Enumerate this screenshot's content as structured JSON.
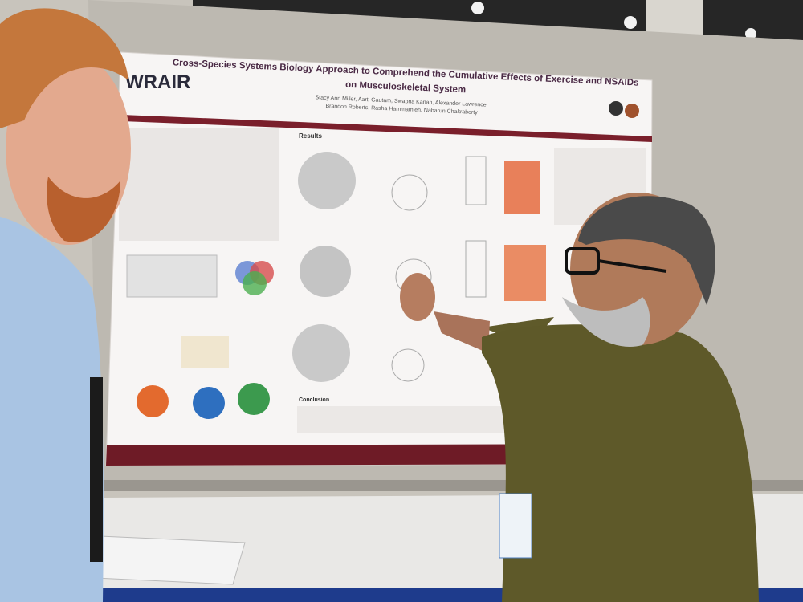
{
  "poster": {
    "logo": "WRAIR",
    "title": [
      "Cross-Species Systems Biology Approach to Comprehend the Cumulative Effects of Exercise and NSAIDs",
      "on Musculoskeletal System"
    ],
    "authors": [
      "Stacy Ann Miller, Aarti Gautam, Swapna Kanan, Alexander Lawrence,",
      "Brandon Roberts, Rasha Hammamieh, Nabarun Chakraborty"
    ],
    "sections": [
      "Results",
      "Conclusion"
    ]
  }
}
